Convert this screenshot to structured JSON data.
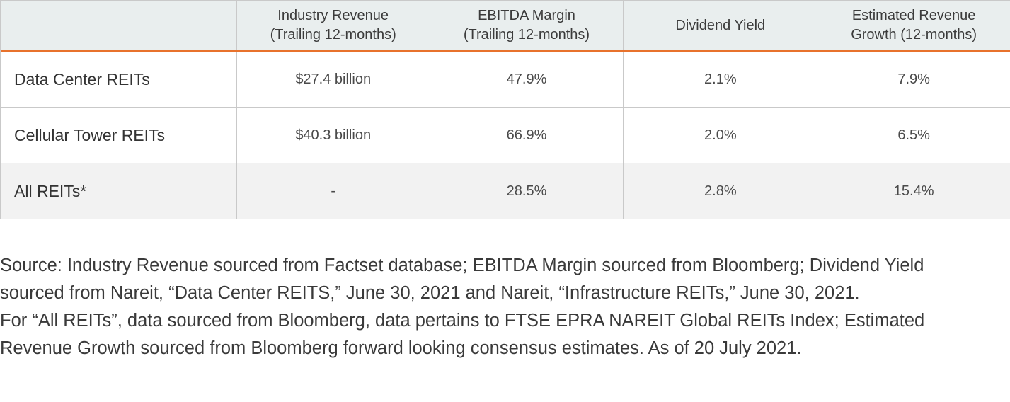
{
  "table": {
    "headers": [
      "",
      "Industry Revenue\n(Trailing 12-months)",
      "EBITDA Margin\n(Trailing 12-months)",
      "Dividend Yield",
      "Estimated Revenue\nGrowth (12-months)"
    ],
    "header_lines": [
      [
        ""
      ],
      [
        "Industry Revenue",
        "(Trailing 12-months)"
      ],
      [
        "EBITDA Margin",
        "(Trailing 12-months)"
      ],
      [
        "Dividend Yield"
      ],
      [
        "Estimated Revenue",
        "Growth (12-months)"
      ]
    ],
    "rows": [
      [
        "Data Center REITs",
        "$27.4 billion",
        "47.9%",
        "2.1%",
        "7.9%"
      ],
      [
        "Cellular Tower REITs",
        "$40.3 billion",
        "66.9%",
        "2.0%",
        "6.5%"
      ],
      [
        "All REITs*",
        "-",
        "28.5%",
        "2.8%",
        "15.4%"
      ]
    ]
  },
  "note": {
    "line1": "Source: Industry Revenue sourced from Factset database; EBITDA Margin sourced from Bloomberg; Dividend Yield",
    "line2": "sourced from Nareit, “Data Center REITS,” June 30, 2021 and Nareit, “Infrastructure REITs,” June 30, 2021.",
    "line3": "For “All REITs”, data sourced from Bloomberg, data pertains to FTSE EPRA NAREIT Global REITs Index; Estimated",
    "line4": "Revenue Growth sourced from Bloomberg forward looking consensus estimates. As of 20 July 2021."
  },
  "colors": {
    "header_bg": "#e9eeee",
    "header_rule": "#e8722c",
    "shaded_row": "#f2f2f2",
    "grid": "#c9c9c9",
    "text": "#3a3a3a"
  }
}
